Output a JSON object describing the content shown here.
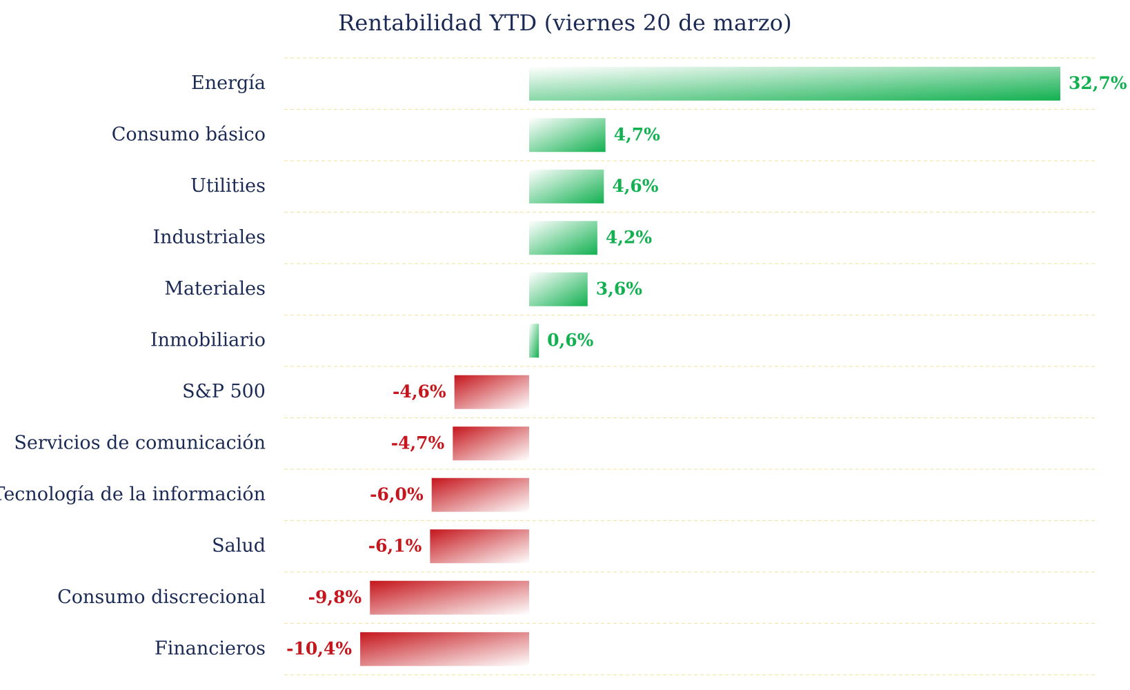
{
  "colors": {
    "positive": "#12b050",
    "negative": "#c4161c",
    "label": "#1b2a55",
    "grid": "#f2e6a6"
  },
  "chart_data": {
    "type": "bar",
    "orientation": "horizontal",
    "title": "Rentabilidad YTD (viernes 20 de marzo)",
    "xlabel": "",
    "ylabel": "",
    "xlim": [
      -10.4,
      32.7
    ],
    "grid": true,
    "legend": "none",
    "categories": [
      "Energía",
      "Consumo básico",
      "Utilities",
      "Industriales",
      "Materiales",
      "Inmobiliario",
      "S&P 500",
      "Servicios de comunicación",
      "Tecnología de la información",
      "Salud",
      "Consumo discrecional",
      "Financieros"
    ],
    "values": [
      32.7,
      4.7,
      4.6,
      4.2,
      3.6,
      0.6,
      -4.6,
      -4.7,
      -6.0,
      -6.1,
      -9.8,
      -10.4
    ],
    "value_labels": [
      "32,7%",
      "4,7%",
      "4,6%",
      "4,2%",
      "3,6%",
      "0,6%",
      "-4,6%",
      "-4,7%",
      "-6,0%",
      "-6,1%",
      "-9,8%",
      "-10,4%"
    ]
  }
}
